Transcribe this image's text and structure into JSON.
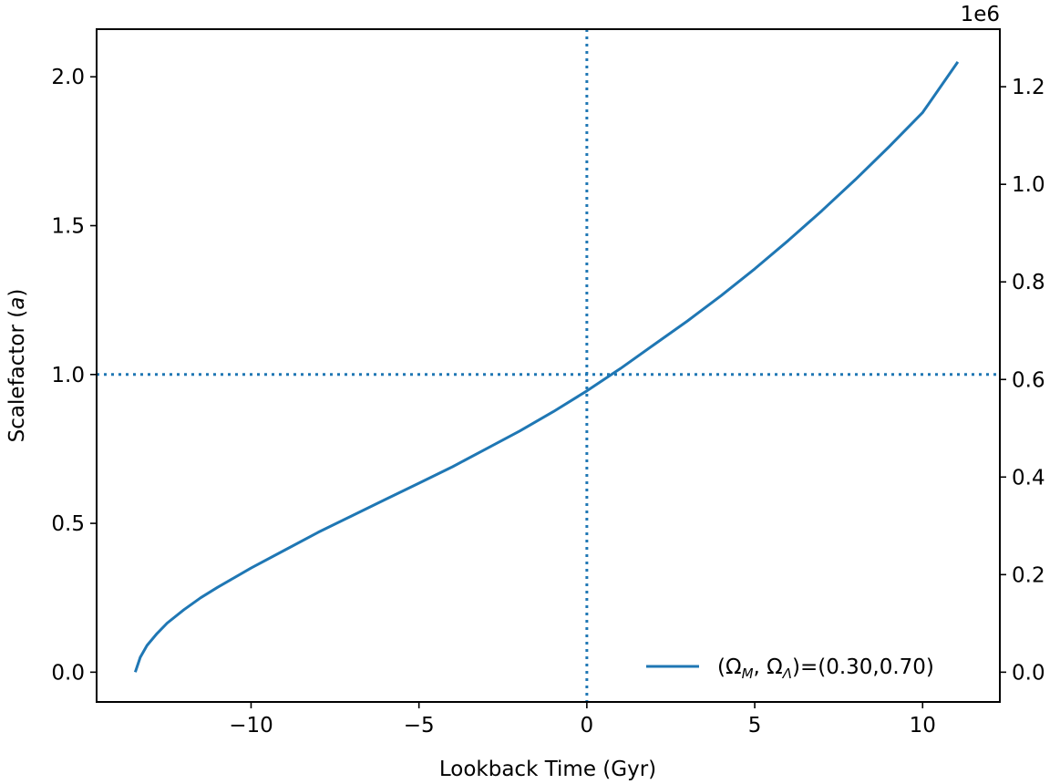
{
  "chart_data": {
    "type": "line",
    "xlabel": "Lookback Time (Gyr)",
    "ylabel_text": "Scalefactor (",
    "ylabel_var": "a",
    "ylabel_close": ")",
    "xlim": [
      -14.6,
      12.3
    ],
    "ylim": [
      -0.1,
      2.16
    ],
    "y2lim": [
      -0.061,
      1.318
    ],
    "y2_offset_label": "1e6",
    "x_ticks": [
      -10,
      -5,
      0,
      5,
      10
    ],
    "x_tick_labels": [
      "−10",
      "−5",
      "0",
      "5",
      "10"
    ],
    "y_ticks": [
      0.0,
      0.5,
      1.0,
      1.5,
      2.0
    ],
    "y_tick_labels": [
      "0.0",
      "0.5",
      "1.0",
      "1.5",
      "2.0"
    ],
    "y2_ticks": [
      0.0,
      0.2,
      0.4,
      0.6,
      0.8,
      1.0,
      1.2
    ],
    "y2_tick_labels": [
      "0.0",
      "0.2",
      "0.4",
      "0.6",
      "0.8",
      "1.0",
      "1.2"
    ],
    "reference_lines": {
      "vertical_x": 0,
      "horizontal_y": 1.0,
      "style": "dotted"
    },
    "grid": false,
    "legend_placement": "lower-right",
    "series": [
      {
        "legend_prefix": "(Ω",
        "legend_sub1": "M",
        "legend_mid": ", Ω",
        "legend_sub2": "Λ",
        "legend_suffix": ")=(0.30,0.70)",
        "color": "#1f77b4",
        "x": [
          -13.45,
          -13.3,
          -13.1,
          -12.8,
          -12.5,
          -12.0,
          -11.5,
          -11.0,
          -10.0,
          -9.0,
          -8.0,
          -7.0,
          -6.0,
          -5.0,
          -4.0,
          -3.0,
          -2.0,
          -1.0,
          0.0,
          1.0,
          2.0,
          3.0,
          4.0,
          5.0,
          6.0,
          7.0,
          8.0,
          9.0,
          10.0,
          11.05
        ],
        "y": [
          0.0,
          0.05,
          0.09,
          0.13,
          0.165,
          0.21,
          0.25,
          0.285,
          0.35,
          0.41,
          0.47,
          0.525,
          0.58,
          0.635,
          0.69,
          0.75,
          0.81,
          0.875,
          0.945,
          1.02,
          1.1,
          1.18,
          1.265,
          1.355,
          1.45,
          1.55,
          1.655,
          1.765,
          1.88,
          2.05
        ]
      }
    ]
  }
}
